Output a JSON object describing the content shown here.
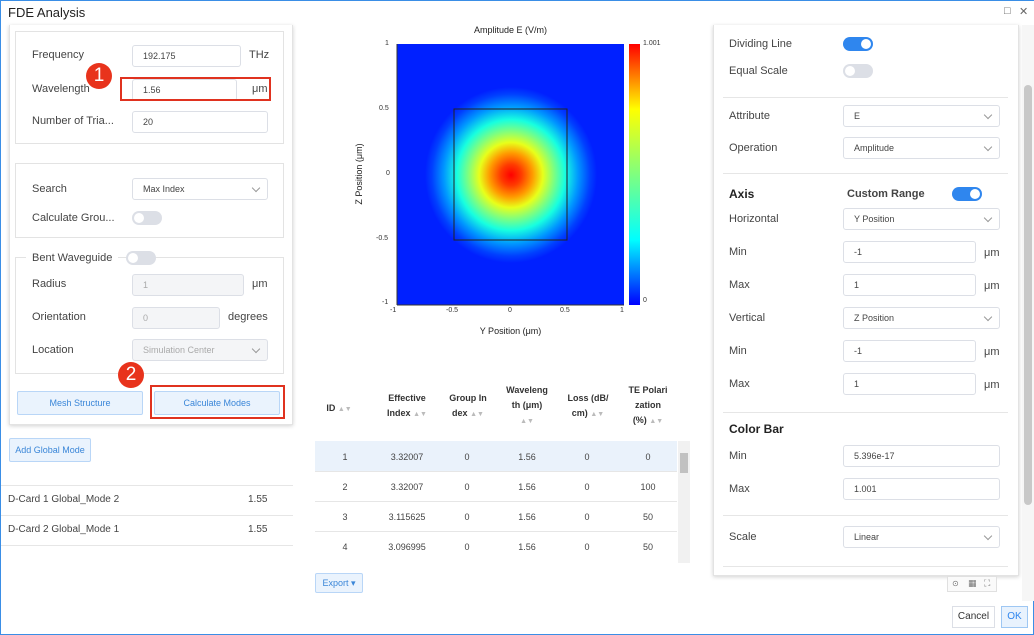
{
  "window": {
    "title": "FDE  Analysis"
  },
  "left": {
    "frequency_label": "Frequency",
    "frequency_value": "192.175",
    "frequency_unit": "THz",
    "wavelength_label": "Wavelength",
    "wavelength_value": "1.56",
    "wavelength_unit": "μm",
    "num_trial_label": "Number  of  Tria...",
    "num_trial_value": "20",
    "search_label": "Search",
    "search_value": "Max Index",
    "calc_group_label": "Calculate  Grou...",
    "bent_label": "Bent  Waveguide",
    "radius_label": "Radius",
    "radius_value": "1",
    "radius_unit": "μm",
    "orientation_label": "Orientation",
    "orientation_value": "0",
    "orientation_unit": "degrees",
    "location_label": "Location",
    "location_value": "Simulation Center",
    "mesh_button": "Mesh Structure",
    "calc_modes_button": "Calculate Modes",
    "add_global_mode_button": "Add Global Mode",
    "global_modes": [
      {
        "name": "D-Card  1  Global_Mode  2",
        "value": "1.55"
      },
      {
        "name": "D-Card  2  Global_Mode  1",
        "value": "1.55"
      }
    ]
  },
  "annotations": {
    "badge1": "1",
    "badge2": "2"
  },
  "plot": {
    "title": "Amplitude E (V/m)",
    "xlabel": "Y Position (μm)",
    "ylabel": "Z Position (μm)",
    "xticks": [
      "-1",
      "-0.5",
      "0",
      "0.5",
      "1"
    ],
    "yticks": [
      "1",
      "0.5",
      "0",
      "-0.5",
      "-1"
    ],
    "colorbar_max": "1.001",
    "colorbar_min": "0"
  },
  "table": {
    "headers": [
      {
        "l1": "",
        "l2": "ID",
        "l3": ""
      },
      {
        "l1": "Effective",
        "l2": "Index",
        "l3": ""
      },
      {
        "l1": "Group  In",
        "l2": "dex",
        "l3": ""
      },
      {
        "l1": "Waveleng",
        "l2": "th  (μm)",
        "l3": ""
      },
      {
        "l1": "Loss  (dB/",
        "l2": "cm)",
        "l3": ""
      },
      {
        "l1": "TE  Polari",
        "l2": "zation",
        "l3": "(%)"
      }
    ],
    "rows": [
      [
        "1",
        "3.32007",
        "0",
        "1.56",
        "0",
        "0"
      ],
      [
        "2",
        "3.32007",
        "0",
        "1.56",
        "0",
        "100"
      ],
      [
        "3",
        "3.115625",
        "0",
        "1.56",
        "0",
        "50"
      ],
      [
        "4",
        "3.096995",
        "0",
        "1.56",
        "0",
        "50"
      ]
    ],
    "export_button": "Export"
  },
  "right": {
    "dividing_line_label": "Dividing  Line",
    "equal_scale_label": "Equal  Scale",
    "attribute_label": "Attribute",
    "attribute_value": "E",
    "operation_label": "Operation",
    "operation_value": "Amplitude",
    "axis_title": "Axis",
    "custom_range_label": "Custom  Range",
    "horizontal_label": "Horizontal",
    "horizontal_value": "Y Position",
    "hmin_label": "Min",
    "hmin_value": "-1",
    "hmin_unit": "μm",
    "hmax_label": "Max",
    "hmax_value": "1",
    "hmax_unit": "μm",
    "vertical_label": "Vertical",
    "vertical_value": "Z Position",
    "vmin_label": "Min",
    "vmin_value": "-1",
    "vmin_unit": "μm",
    "vmax_label": "Max",
    "vmax_value": "1",
    "vmax_unit": "μm",
    "colorbar_title": "Color  Bar",
    "cmin_label": "Min",
    "cmin_value": "5.396e-17",
    "cmax_label": "Max",
    "cmax_value": "1.001",
    "scale_label": "Scale",
    "scale_value": "Linear"
  },
  "footer": {
    "cancel": "Cancel",
    "ok": "OK"
  },
  "colors": {
    "accent": "#2f86ee",
    "annotation_red": "#e0321f"
  }
}
